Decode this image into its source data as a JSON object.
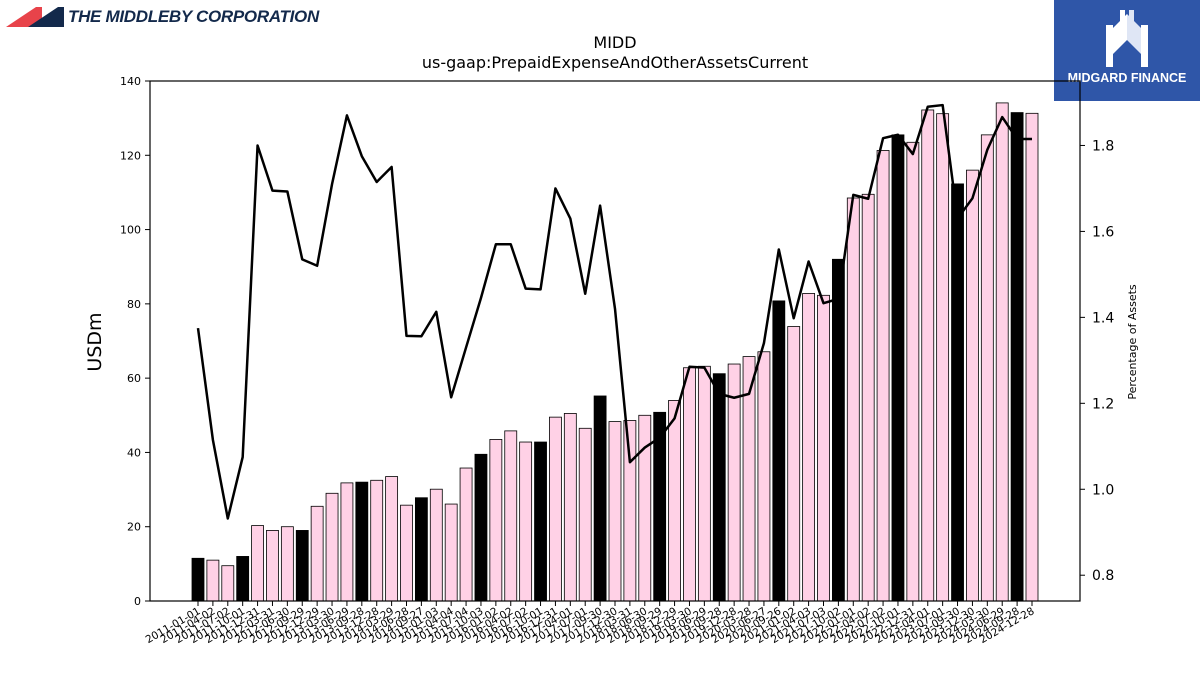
{
  "header": {
    "company_name": "THE MIDDLEBY CORPORATION",
    "brand_name": "MIDGARD FINANCE",
    "brand_color": "#2f56a8",
    "logo_colors": [
      "#e8434a",
      "#13294b"
    ]
  },
  "chart_data": {
    "type": "bar",
    "title": "MIDD",
    "subtitle": "us-gaap:PrepaidExpenseAndOtherAssetsCurrent",
    "ylabel": "USDm",
    "y2label": "Percentage of Assets",
    "ylim": [
      0,
      140
    ],
    "y2lim": [
      0.74,
      1.95
    ],
    "yticks": [
      0,
      20,
      40,
      60,
      80,
      100,
      120,
      140
    ],
    "y2ticks": [
      0.8,
      1.0,
      1.2,
      1.4,
      1.6,
      1.8
    ],
    "grid": false,
    "colors": {
      "annual_bar": "#000000",
      "quarter_bar": "#ffd1e6",
      "bar_edge": "#000000",
      "line": "#000000"
    },
    "categories": [
      "2011-01-01",
      "2011-04-02",
      "2011-07-02",
      "2011-10-01",
      "2011-12-31",
      "2012-03-31",
      "2012-06-30",
      "2012-09-29",
      "2012-12-29",
      "2013-03-30",
      "2013-06-29",
      "2013-09-28",
      "2013-12-28",
      "2014-03-29",
      "2014-06-28",
      "2014-09-27",
      "2015-01-03",
      "2015-04-04",
      "2015-07-04",
      "2015-10-03",
      "2016-01-02",
      "2016-04-02",
      "2016-07-02",
      "2016-10-01",
      "2016-12-31",
      "2017-04-01",
      "2017-07-01",
      "2017-09-30",
      "2017-12-30",
      "2018-03-31",
      "2018-06-30",
      "2018-09-29",
      "2018-12-29",
      "2019-03-30",
      "2019-06-29",
      "2019-09-28",
      "2019-12-28",
      "2020-03-28",
      "2020-06-27",
      "2020-09-26",
      "2021-01-02",
      "2021-04-03",
      "2021-07-03",
      "2021-10-02",
      "2022-01-01",
      "2022-04-02",
      "2022-07-02",
      "2022-10-01",
      "2022-12-31",
      "2023-04-01",
      "2023-07-01",
      "2023-09-30",
      "2023-12-30",
      "2024-03-30",
      "2024-06-29",
      "2024-09-28",
      "2024-12-28"
    ],
    "annual": [
      1,
      0,
      0,
      1,
      0,
      0,
      0,
      1,
      0,
      0,
      0,
      1,
      0,
      0,
      0,
      1,
      0,
      0,
      0,
      1,
      0,
      0,
      0,
      1,
      0,
      0,
      0,
      1,
      0,
      0,
      0,
      1,
      0,
      0,
      0,
      1,
      0,
      0,
      0,
      1,
      0,
      0,
      0,
      1,
      0,
      0,
      0,
      1,
      0,
      0,
      0,
      1,
      0,
      0,
      0,
      1,
      0
    ],
    "series": [
      {
        "name": "",
        "axis": "left",
        "kind": "bar",
        "values": [
          11.5,
          11.0,
          9.5,
          12.0,
          20.3,
          19.0,
          20.0,
          19.0,
          25.5,
          29.0,
          31.8,
          32.0,
          32.5,
          33.5,
          25.8,
          27.8,
          30.1,
          26.1,
          35.8,
          39.5,
          43.5,
          45.8,
          42.8,
          42.8,
          49.5,
          50.5,
          46.5,
          55.2,
          48.3,
          48.6,
          50.0,
          50.8,
          54.0,
          62.8,
          63.2,
          61.2,
          63.8,
          65.8,
          67.1,
          80.8,
          73.9,
          82.8,
          82.3,
          92.0,
          108.5,
          109.5,
          121.3,
          125.5,
          123.5,
          132.2,
          131.2,
          112.3,
          116.0,
          125.5,
          134.1,
          131.5,
          131.3
        ]
      },
      {
        "name": "",
        "axis": "right",
        "kind": "line",
        "values": [
          1.375,
          1.115,
          0.932,
          1.075,
          1.8,
          1.695,
          1.693,
          1.535,
          1.52,
          1.71,
          1.87,
          1.775,
          1.715,
          1.75,
          1.357,
          1.356,
          1.413,
          1.214,
          1.33,
          1.445,
          1.57,
          1.57,
          1.467,
          1.465,
          1.7,
          1.63,
          1.455,
          1.66,
          1.42,
          1.063,
          1.097,
          1.12,
          1.165,
          1.285,
          1.283,
          1.222,
          1.213,
          1.222,
          1.34,
          1.558,
          1.398,
          1.53,
          1.433,
          1.443,
          1.685,
          1.676,
          1.817,
          1.825,
          1.78,
          1.89,
          1.894,
          1.63,
          1.677,
          1.79,
          1.866,
          1.815,
          1.815
        ]
      }
    ]
  }
}
